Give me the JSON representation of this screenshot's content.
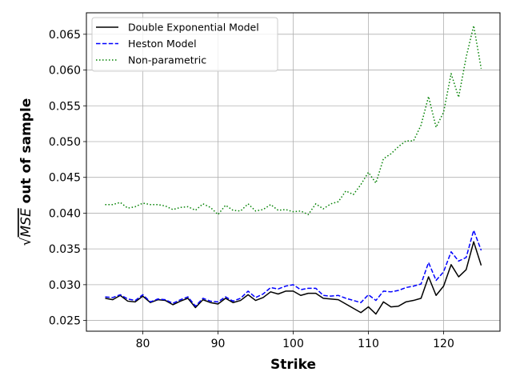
{
  "chart_data": {
    "type": "line",
    "xlabel": "Strike",
    "ylabel_radical": "√",
    "ylabel_mse": "MSE",
    "ylabel_rest": " out of sample",
    "xlim": [
      72.5,
      127.5
    ],
    "ylim": [
      0.0235,
      0.068
    ],
    "xticks": [
      80,
      90,
      100,
      110,
      120
    ],
    "yticks": [
      0.025,
      0.03,
      0.035,
      0.04,
      0.045,
      0.05,
      0.055,
      0.06,
      0.065
    ],
    "ytick_labels": [
      "0.025",
      "0.030",
      "0.035",
      "0.040",
      "0.045",
      "0.050",
      "0.055",
      "0.060",
      "0.065"
    ],
    "grid": true,
    "legend_position": "top-left",
    "x": [
      75,
      76,
      77,
      78,
      79,
      80,
      81,
      82,
      83,
      84,
      85,
      86,
      87,
      88,
      89,
      90,
      91,
      92,
      93,
      94,
      95,
      96,
      97,
      98,
      99,
      100,
      101,
      102,
      103,
      104,
      105,
      106,
      107,
      108,
      109,
      110,
      111,
      112,
      113,
      114,
      115,
      116,
      117,
      118,
      119,
      120,
      121,
      122,
      123,
      124,
      125
    ],
    "series": [
      {
        "name": "Double Exponential Model",
        "color": "#000000",
        "dash": "solid",
        "values": [
          0.0281,
          0.0279,
          0.0285,
          0.0277,
          0.0276,
          0.0284,
          0.0275,
          0.0279,
          0.0278,
          0.0272,
          0.0277,
          0.0281,
          0.0268,
          0.0279,
          0.0275,
          0.0273,
          0.0281,
          0.0275,
          0.0278,
          0.0286,
          0.0278,
          0.0282,
          0.029,
          0.0287,
          0.0291,
          0.0291,
          0.0285,
          0.0288,
          0.0288,
          0.0281,
          0.028,
          0.0279,
          0.0273,
          0.0267,
          0.0261,
          0.0269,
          0.0259,
          0.0276,
          0.0269,
          0.027,
          0.0276,
          0.0278,
          0.0281,
          0.0311,
          0.0285,
          0.0298,
          0.0328,
          0.0311,
          0.0321,
          0.036,
          0.0327
        ]
      },
      {
        "name": "Heston Model",
        "color": "#0000ff",
        "dash": "dashed",
        "values": [
          0.0283,
          0.0282,
          0.0286,
          0.028,
          0.0278,
          0.0286,
          0.0276,
          0.028,
          0.0279,
          0.0274,
          0.0279,
          0.0283,
          0.027,
          0.0281,
          0.0277,
          0.0276,
          0.0283,
          0.0277,
          0.0281,
          0.0291,
          0.0282,
          0.0287,
          0.0296,
          0.0294,
          0.0298,
          0.03,
          0.0293,
          0.0295,
          0.0295,
          0.0285,
          0.0284,
          0.0285,
          0.0281,
          0.0278,
          0.0275,
          0.0286,
          0.0278,
          0.0291,
          0.029,
          0.0292,
          0.0296,
          0.0298,
          0.0301,
          0.0331,
          0.0306,
          0.0318,
          0.0346,
          0.0333,
          0.0338,
          0.0376,
          0.0348
        ]
      },
      {
        "name": "Non-parametric",
        "color": "#008000",
        "dash": "dotted",
        "values": [
          0.0412,
          0.0412,
          0.0415,
          0.0407,
          0.0409,
          0.0414,
          0.0412,
          0.0412,
          0.041,
          0.0405,
          0.0408,
          0.0409,
          0.0404,
          0.0413,
          0.0408,
          0.0398,
          0.0411,
          0.0404,
          0.0403,
          0.0413,
          0.0403,
          0.0405,
          0.0412,
          0.0404,
          0.0405,
          0.0402,
          0.0403,
          0.0398,
          0.0413,
          0.0406,
          0.0413,
          0.0416,
          0.0431,
          0.0426,
          0.044,
          0.0457,
          0.0442,
          0.0476,
          0.0483,
          0.0493,
          0.0501,
          0.0501,
          0.0523,
          0.0563,
          0.052,
          0.0541,
          0.0595,
          0.0562,
          0.0618,
          0.0662,
          0.0602
        ]
      }
    ]
  }
}
